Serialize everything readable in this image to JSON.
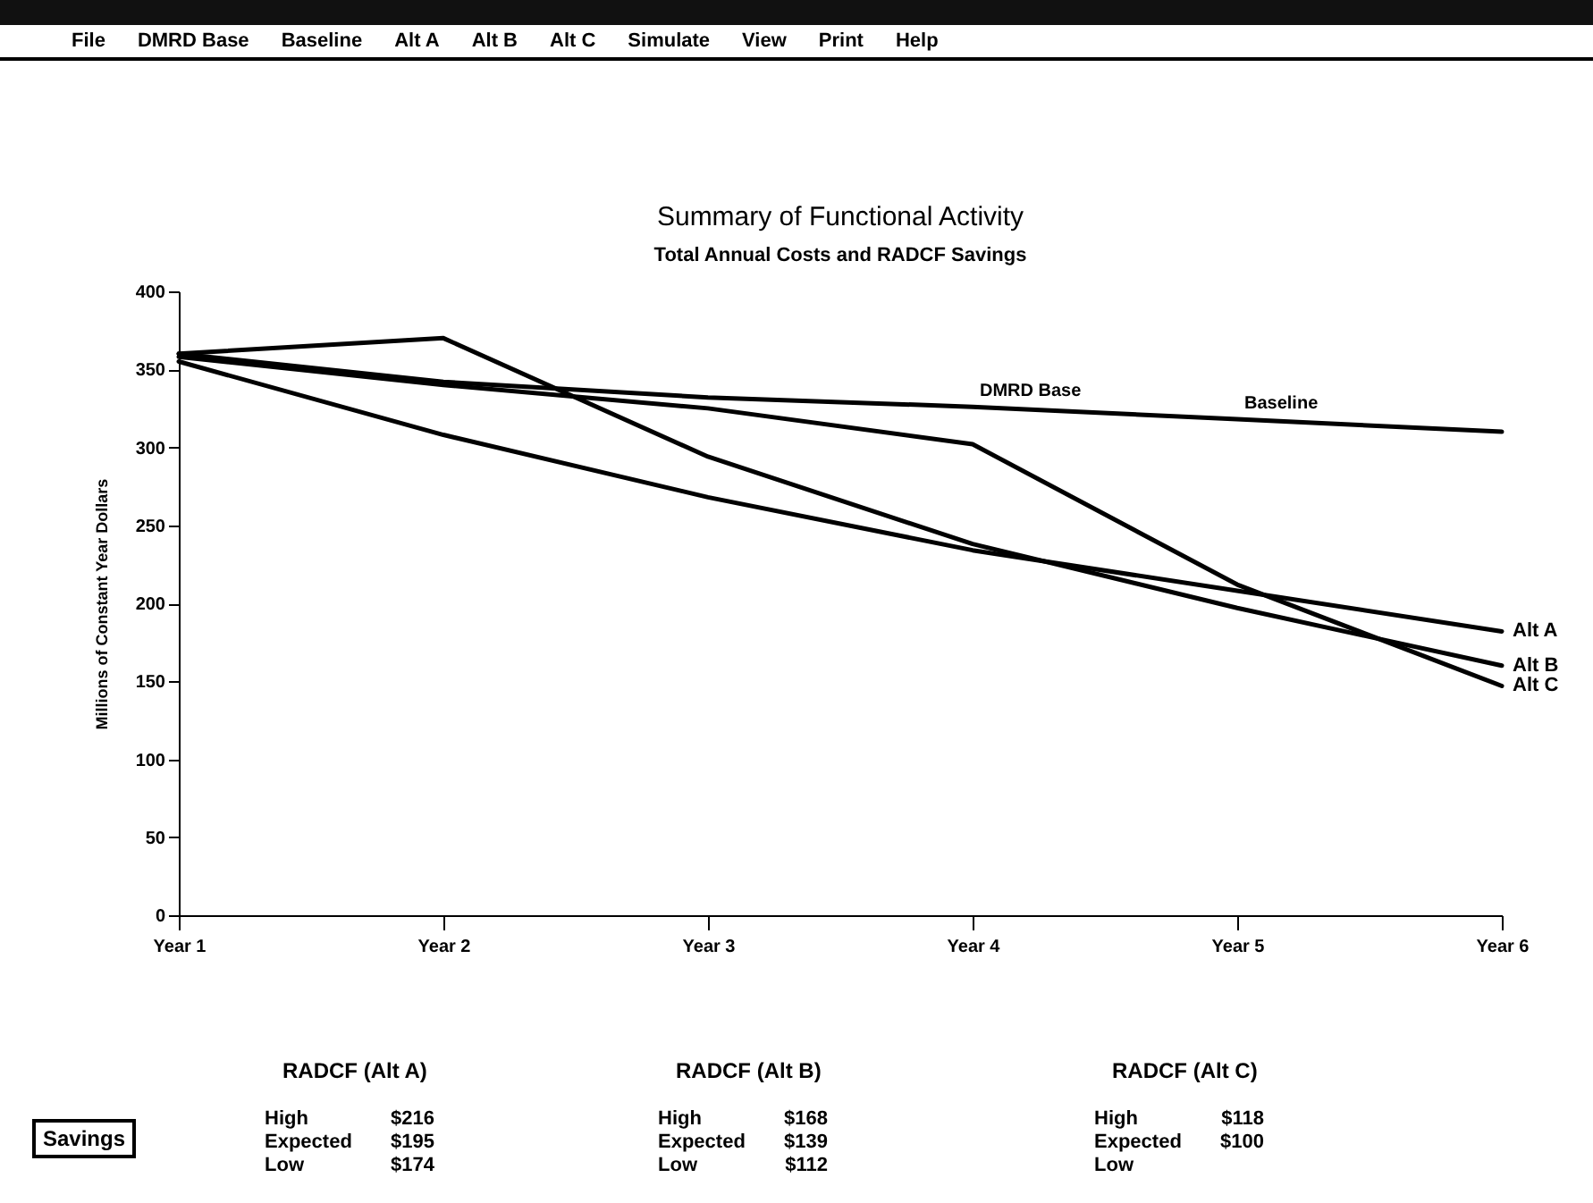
{
  "chart_data": {
    "type": "line",
    "title": "Summary of Functional Activity",
    "subtitle": "Total Annual Costs and RADCF Savings",
    "ylabel": "Millions of Constant Year Dollars",
    "categories": [
      "Year 1",
      "Year 2",
      "Year 3",
      "Year 4",
      "Year 5",
      "Year 6"
    ],
    "series": [
      {
        "color": "#000000",
        "values": [
          360,
          342,
          332,
          326,
          318,
          310
        ]
      },
      {
        "name": "Alt A",
        "color": "#000000",
        "values": [
          355,
          308,
          268,
          234,
          208,
          182
        ]
      },
      {
        "name": "Alt B",
        "color": "#000000",
        "values": [
          360,
          370,
          294,
          238,
          197,
          160
        ]
      },
      {
        "name": "Alt C",
        "color": "#000000",
        "values": [
          358,
          340,
          325,
          302,
          212,
          147
        ]
      }
    ],
    "ylim": [
      0,
      400
    ],
    "yticks": [
      0,
      50,
      100,
      150,
      200,
      250,
      300,
      350,
      400
    ],
    "annotations": [
      "File",
      "DMRD Base",
      "Baseline",
      "Alt A",
      "Alt B",
      "Alt C",
      "Simulate",
      "View",
      "Print",
      "Help",
      "Savings",
      "RADCF (Alt A)",
      "High",
      "$216",
      "Expected",
      "$195",
      "Low",
      "$174",
      "RADCF (Alt B)",
      "High",
      "$168",
      "Expected",
      "$139",
      "Low",
      "$112",
      "RADCF (Alt C)",
      "High",
      "$118",
      "Expected",
      "$100",
      "Low",
      {
        "text": "DMRD Base",
        "x": "Year 4",
        "y": 326
      },
      {
        "text": "Baseline",
        "x": "Year 5",
        "y": 318
      }
    ]
  }
}
